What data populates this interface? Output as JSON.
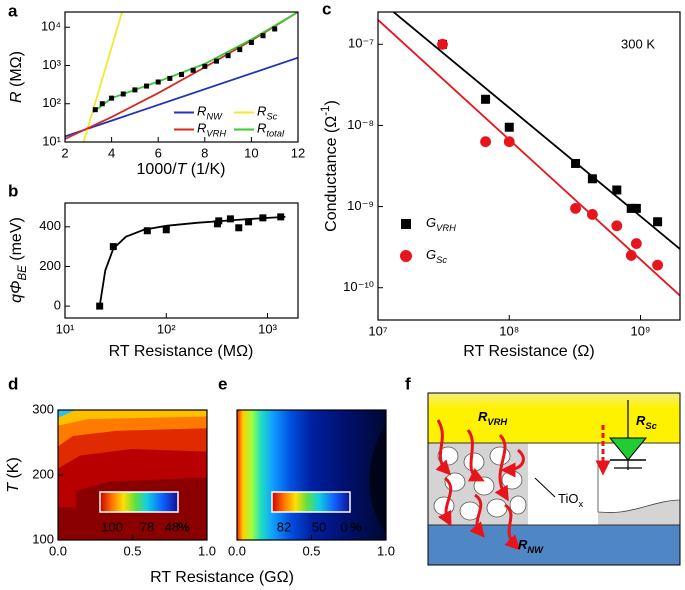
{
  "chart_data": [
    {
      "panel": "a",
      "type": "line",
      "xlim": [
        2,
        12
      ],
      "xticks": [
        2,
        4,
        6,
        8,
        10,
        12
      ],
      "yscale": "log",
      "ylim": [
        10,
        25000
      ],
      "yticks": [
        {
          "value": 10,
          "label": "10¹"
        },
        {
          "value": 100,
          "label": "10²"
        },
        {
          "value": 1000,
          "label": "10³"
        },
        {
          "value": 10000,
          "label": "10⁴"
        }
      ],
      "xlabel": [
        {
          "text": "1000/"
        },
        {
          "text": "T",
          "style": "italic"
        },
        {
          "text": " (1/K)"
        }
      ],
      "ylabel": [
        {
          "text": "R",
          "style": "italic"
        },
        {
          "text": " (MΩ)"
        }
      ],
      "legend": "lower right",
      "series": [
        {
          "name": [
            {
              "text": "R",
              "style": "italic"
            },
            {
              "text": "NW",
              "style": "italic sub"
            }
          ],
          "color": "#2233bb",
          "mode": "line",
          "x": [
            2,
            12
          ],
          "values": [
            14,
            1600
          ]
        },
        {
          "name": [
            {
              "text": "R",
              "style": "italic"
            },
            {
              "text": "Sc",
              "style": "italic sub"
            }
          ],
          "color": "#f2ea2a",
          "mode": "line",
          "x": [
            2.8,
            4.45
          ],
          "values": [
            10,
            25000
          ]
        },
        {
          "name": [
            {
              "text": "R",
              "style": "italic"
            },
            {
              "text": "VRH",
              "style": "italic sub"
            }
          ],
          "color": "#d8281e",
          "mode": "line",
          "x": [
            2,
            4,
            6,
            8,
            10,
            12
          ],
          "values": [
            12,
            45,
            190,
            900,
            4500,
            25000
          ]
        },
        {
          "name": [
            {
              "text": "R",
              "style": "italic"
            },
            {
              "text": "total",
              "style": "italic sub"
            }
          ],
          "color": "#33cc33",
          "mode": "line",
          "x": [
            3.2,
            4,
            6,
            8,
            10,
            12
          ],
          "values": [
            60,
            140,
            380,
            1100,
            4800,
            25000
          ]
        },
        {
          "color": "#000000",
          "mode": "square",
          "x": [
            3.3,
            3.6,
            4,
            4.5,
            5,
            5.5,
            6,
            6.5,
            7,
            7.5,
            8,
            8.5,
            9,
            9.5,
            10,
            10.5,
            11
          ],
          "values": [
            70,
            100,
            140,
            180,
            230,
            290,
            370,
            460,
            580,
            750,
            950,
            1300,
            1800,
            2600,
            4000,
            6000,
            9000
          ]
        }
      ]
    },
    {
      "panel": "b",
      "type": "line",
      "xscale": "log",
      "xlim": [
        10,
        2000
      ],
      "xticks": [
        {
          "value": 10,
          "label": "10¹"
        },
        {
          "value": 100,
          "label": "10²"
        },
        {
          "value": 1000,
          "label": "10³"
        }
      ],
      "ylim": [
        -60,
        520
      ],
      "yticks": [
        0,
        200,
        400
      ],
      "xlabel": "RT Resistance (MΩ)",
      "ylabel": [
        {
          "text": "qΦ",
          "style": "italic"
        },
        {
          "text": "BE",
          "style": "italic sub"
        },
        {
          "text": " (meV)"
        }
      ],
      "series": [
        {
          "color": "#000000",
          "mode": "line",
          "x": [
            22,
            25,
            30,
            40,
            60,
            100,
            200,
            500,
            1000,
            1500
          ],
          "values": [
            0,
            180,
            290,
            350,
            385,
            405,
            420,
            435,
            445,
            450
          ]
        },
        {
          "color": "#000000",
          "mode": "square",
          "x": [
            22,
            30,
            65,
            100,
            320,
            330,
            430,
            520,
            650,
            900,
            1350
          ],
          "values": [
            0,
            300,
            380,
            385,
            415,
            430,
            440,
            395,
            425,
            445,
            450
          ]
        }
      ]
    },
    {
      "panel": "c",
      "type": "line",
      "xscale": "log",
      "xlim": [
        10000000,
        2000000000
      ],
      "xticks": [
        {
          "value": 10000000,
          "label": "10⁷"
        },
        {
          "value": 100000000,
          "label": "10⁸"
        },
        {
          "value": 1000000000,
          "label": "10⁹"
        }
      ],
      "yscale": "log",
      "ylim": [
        4e-11,
        2.5e-07
      ],
      "yticks": [
        {
          "value": 1e-10,
          "label": "10⁻¹⁰"
        },
        {
          "value": 1e-09,
          "label": "10⁻⁹"
        },
        {
          "value": 1e-08,
          "label": "10⁻⁸"
        },
        {
          "value": 1e-07,
          "label": "10⁻⁷"
        }
      ],
      "xlabel": "RT Resistance (Ω)",
      "ylabel": [
        {
          "text": "Conductance (Ω"
        },
        {
          "text": "-1",
          "style": "sup"
        },
        {
          "text": ")"
        }
      ],
      "annotation": "300 K",
      "legend": "lower left",
      "series": [
        {
          "color": "#000000",
          "mode": "line",
          "x": [
            10000000,
            2000000000
          ],
          "values": [
            3.6e-07,
            3e-10
          ]
        },
        {
          "color": "#e8141b",
          "mode": "line",
          "x": [
            10000000,
            2000000000
          ],
          "values": [
            2e-07,
            8e-11
          ]
        },
        {
          "name": [
            {
              "text": "G",
              "style": "italic"
            },
            {
              "text": "VRH",
              "style": "italic sub"
            }
          ],
          "color": "#000000",
          "mode": "square",
          "x": [
            31000000,
            66000000,
            100000000,
            320000000,
            430000000,
            660000000,
            850000000,
            930000000,
            1350000000
          ],
          "values": [
            1e-07,
            2.1e-08,
            9.5e-09,
            3.4e-09,
            2.2e-09,
            1.6e-09,
            9.5e-10,
            9.5e-10,
            6.5e-10
          ]
        },
        {
          "name": [
            {
              "text": "G",
              "style": "italic"
            },
            {
              "text": "Sc",
              "style": "italic sub"
            }
          ],
          "color": "#e8141b",
          "mode": "circle",
          "x": [
            31000000,
            66000000,
            100000000,
            320000000,
            430000000,
            660000000,
            850000000,
            930000000,
            1350000000
          ],
          "values": [
            1e-07,
            6.3e-09,
            6.3e-09,
            9.5e-10,
            8e-10,
            5.8e-10,
            2.5e-10,
            3.5e-10,
            1.9e-10
          ]
        }
      ]
    },
    {
      "panel": "d",
      "type": "contour",
      "xlim": [
        0,
        1
      ],
      "xticks": [
        {
          "value": 0,
          "label": "0.0"
        },
        {
          "value": 0.5,
          "label": "0.5"
        },
        {
          "value": 1,
          "label": "1.0"
        }
      ],
      "ylim": [
        100,
        300
      ],
      "yticks": [
        100,
        200,
        300
      ],
      "xlabel": "RT Resistance (GΩ)",
      "ylabel": [
        {
          "text": "T",
          "style": "italic"
        },
        {
          "text": " (K)"
        }
      ],
      "colorbar_ticks": [
        100,
        78,
        48
      ],
      "colorbar_unit": "%"
    },
    {
      "panel": "e",
      "type": "contour",
      "xlim": [
        0,
        1
      ],
      "xticks": [
        {
          "value": 0,
          "label": "0.0"
        },
        {
          "value": 0.5,
          "label": "0.5"
        },
        {
          "value": 1,
          "label": "1.0"
        }
      ],
      "ylim": [
        100,
        300
      ],
      "colorbar_ticks": [
        82,
        50,
        0
      ],
      "colorbar_unit": "%"
    }
  ],
  "diagram": {
    "panel": "f",
    "labels": {
      "vrh": [
        {
          "text": "R",
          "style": "italic"
        },
        {
          "text": "VRH",
          "style": "italic sub"
        }
      ],
      "sc": [
        {
          "text": "R",
          "style": "italic"
        },
        {
          "text": "Sc",
          "style": "italic sub"
        }
      ],
      "tiox": [
        {
          "text": "TiO"
        },
        {
          "text": "x",
          "style": "sub"
        }
      ],
      "nw": [
        {
          "text": "R",
          "style": "italic"
        },
        {
          "text": "NW",
          "style": "italic sub"
        }
      ]
    }
  }
}
